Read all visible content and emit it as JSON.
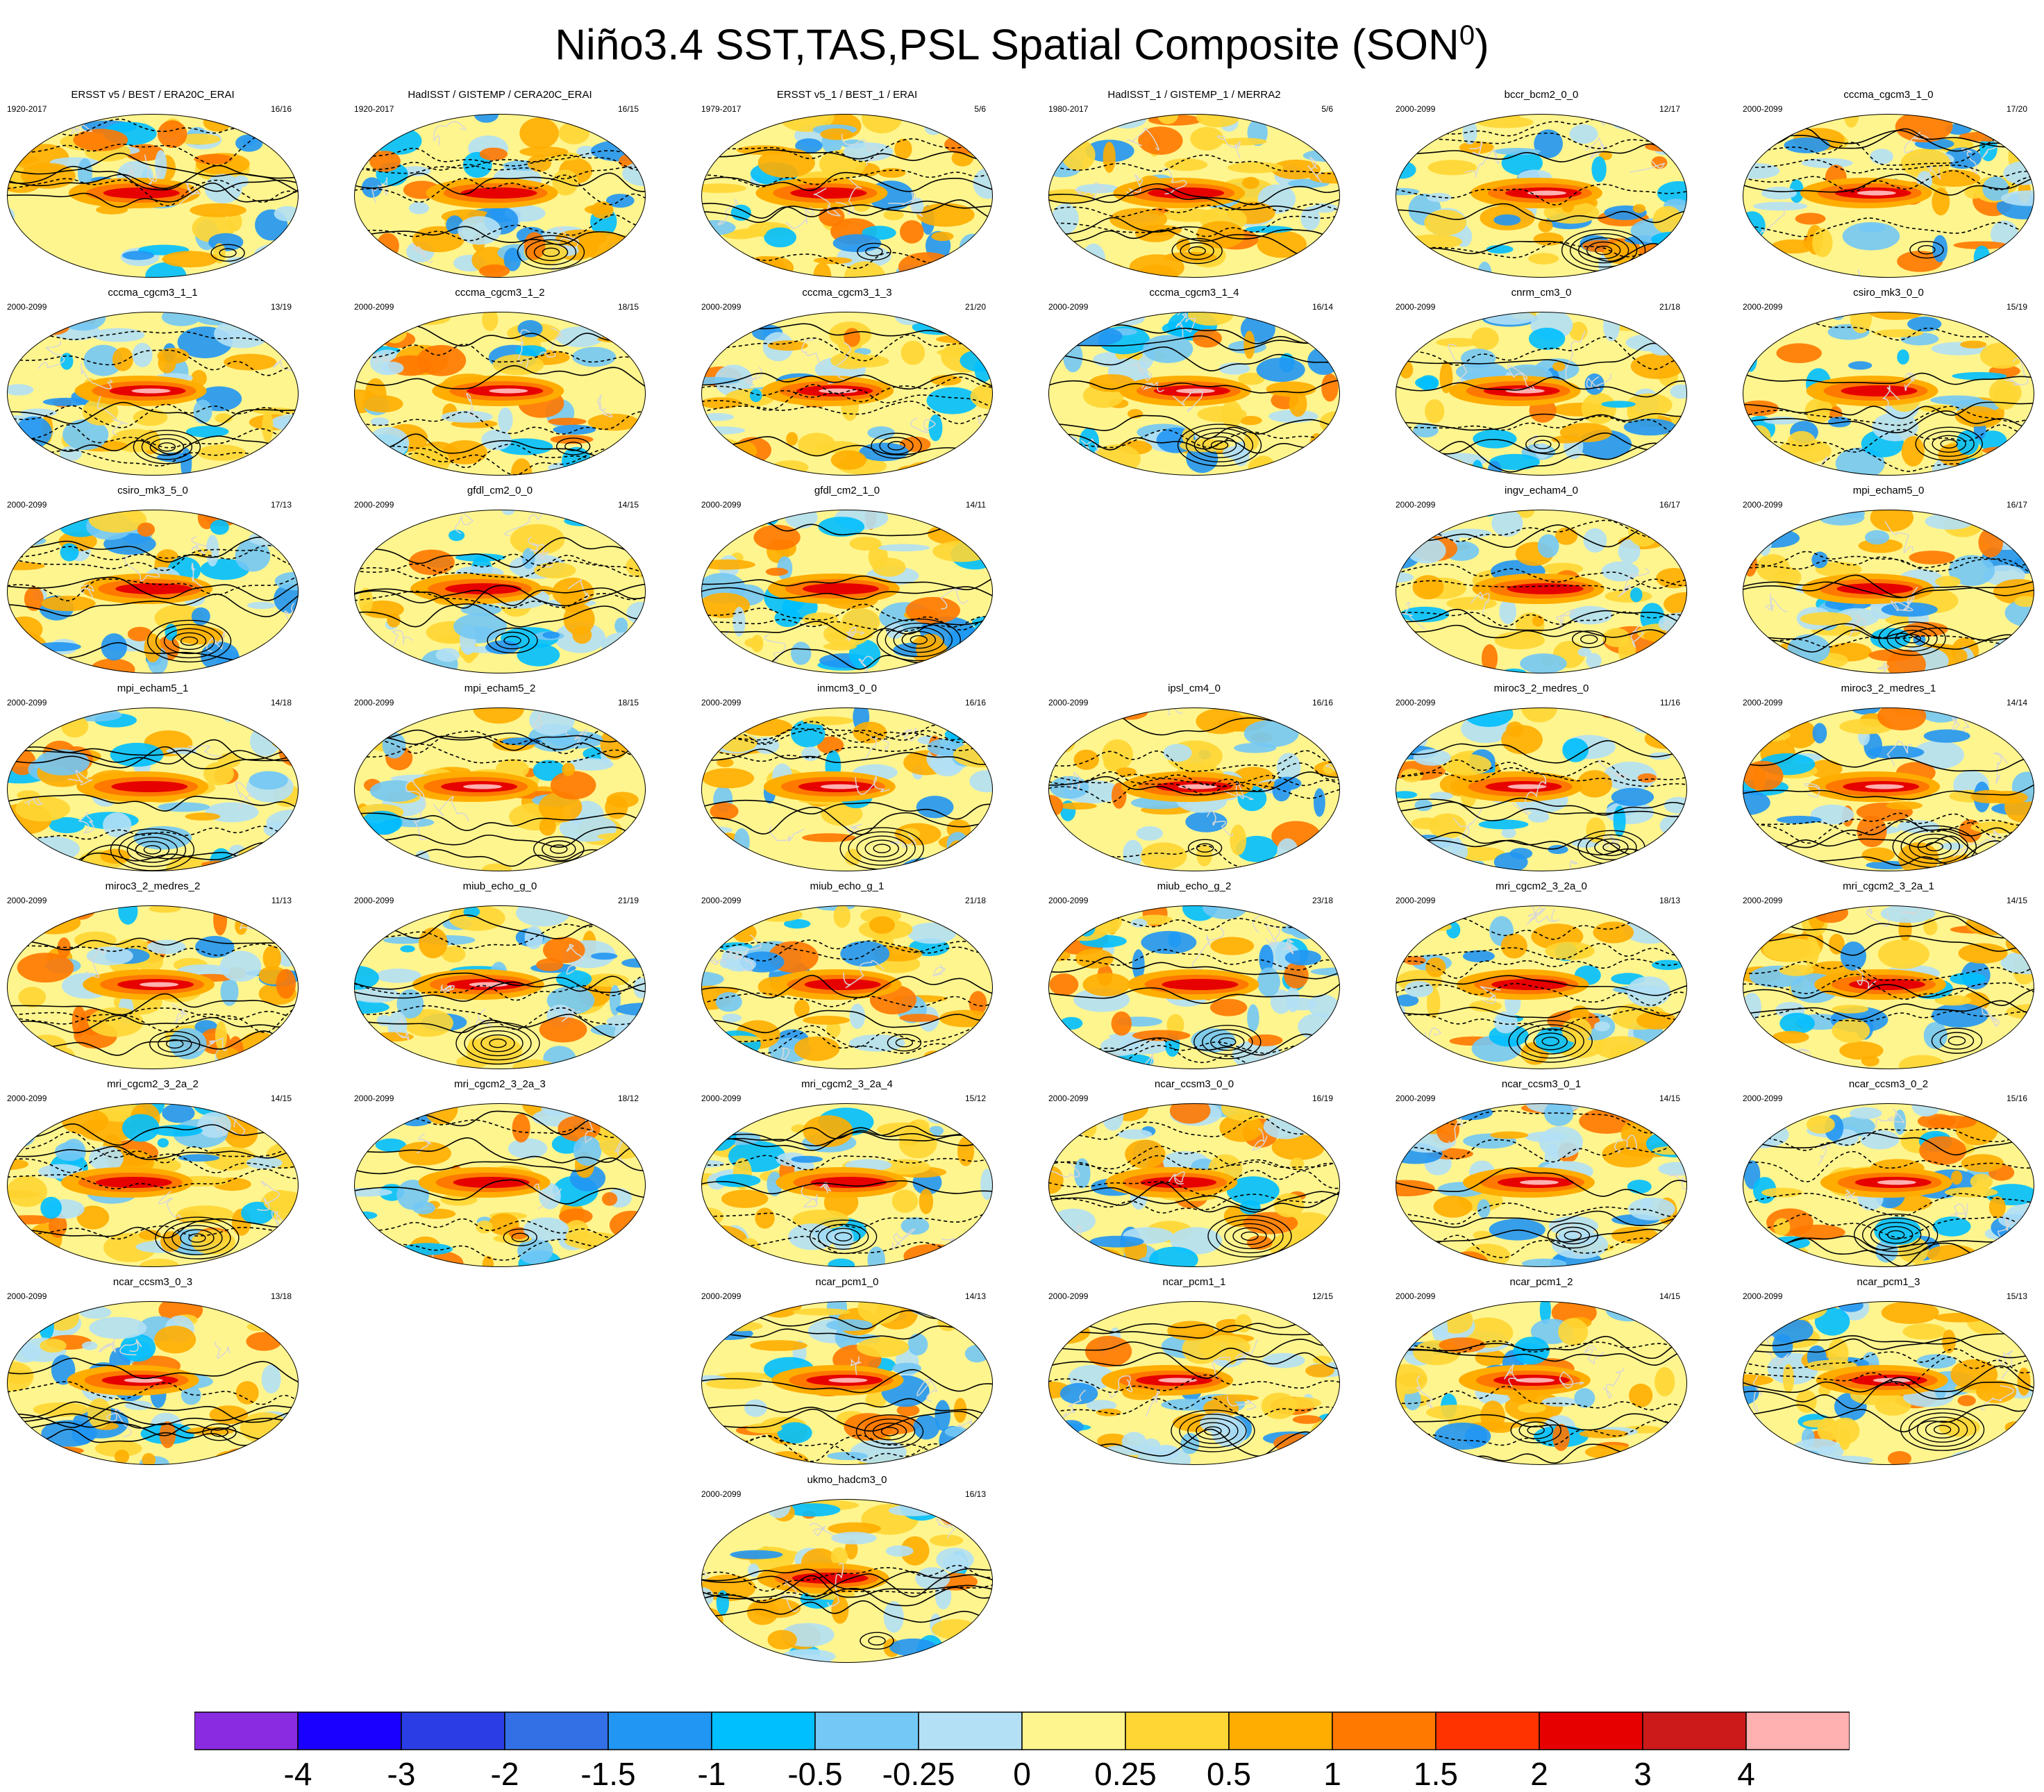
{
  "title": {
    "main": "Niño3.4 SST,TAS,PSL Spatial Composite (SON",
    "sup": "0",
    "close": ")"
  },
  "colors": {
    "levels": [
      "#8a2be2",
      "#1a00ff",
      "#2b3ee6",
      "#3370e6",
      "#2196f3",
      "#00bfff",
      "#73c8f5",
      "#b3e0f5",
      "#fff58f",
      "#ffd633",
      "#ffad00",
      "#ff7800",
      "#ff3300",
      "#e60000",
      "#cc1a1a",
      "#ffb0b0"
    ],
    "coast": "#d8d8d8",
    "contour": "#000000"
  },
  "colorbar": {
    "labels": [
      "-4",
      "-3",
      "-2",
      "-1.5",
      "-1",
      "-0.5",
      "-0.25",
      "0",
      "0.25",
      "0.5",
      "1",
      "1.5",
      "2",
      "3",
      "4"
    ]
  },
  "chart_data": {
    "type": "heatmap",
    "description_of_panels": "composite maps per model",
    "panels": [
      {
        "row": 0,
        "col": 0,
        "name": "ERSST v5 / BEST / ERA20C_ERAI",
        "years": "1920-2017",
        "count": "16/16"
      },
      {
        "row": 0,
        "col": 1,
        "name": "HadISST / GISTEMP / CERA20C_ERAI",
        "years": "1920-2017",
        "count": "16/15"
      },
      {
        "row": 0,
        "col": 2,
        "name": "ERSST v5_1 / BEST_1 / ERAI",
        "years": "1979-2017",
        "count": "5/6"
      },
      {
        "row": 0,
        "col": 3,
        "name": "HadISST_1 / GISTEMP_1 / MERRA2",
        "years": "1980-2017",
        "count": "5/6"
      },
      {
        "row": 0,
        "col": 4,
        "name": "bccr_bcm2_0_0",
        "years": "2000-2099",
        "count": "12/17"
      },
      {
        "row": 0,
        "col": 5,
        "name": "cccma_cgcm3_1_0",
        "years": "2000-2099",
        "count": "17/20"
      },
      {
        "row": 1,
        "col": 0,
        "name": "cccma_cgcm3_1_1",
        "years": "2000-2099",
        "count": "13/19"
      },
      {
        "row": 1,
        "col": 1,
        "name": "cccma_cgcm3_1_2",
        "years": "2000-2099",
        "count": "18/15"
      },
      {
        "row": 1,
        "col": 2,
        "name": "cccma_cgcm3_1_3",
        "years": "2000-2099",
        "count": "21/20"
      },
      {
        "row": 1,
        "col": 3,
        "name": "cccma_cgcm3_1_4",
        "years": "2000-2099",
        "count": "16/14"
      },
      {
        "row": 1,
        "col": 4,
        "name": "cnrm_cm3_0",
        "years": "2000-2099",
        "count": "21/18"
      },
      {
        "row": 1,
        "col": 5,
        "name": "csiro_mk3_0_0",
        "years": "2000-2099",
        "count": "15/19"
      },
      {
        "row": 2,
        "col": 0,
        "name": "csiro_mk3_5_0",
        "years": "2000-2099",
        "count": "17/13"
      },
      {
        "row": 2,
        "col": 1,
        "name": "gfdl_cm2_0_0",
        "years": "2000-2099",
        "count": "14/15"
      },
      {
        "row": 2,
        "col": 2,
        "name": "gfdl_cm2_1_0",
        "years": "2000-2099",
        "count": "14/11"
      },
      {
        "row": 2,
        "col": 4,
        "name": "ingv_echam4_0",
        "years": "2000-2099",
        "count": "16/17"
      },
      {
        "row": 2,
        "col": 5,
        "name": "mpi_echam5_0",
        "years": "2000-2099",
        "count": "16/17"
      },
      {
        "row": 3,
        "col": 0,
        "name": "mpi_echam5_1",
        "years": "2000-2099",
        "count": "14/18"
      },
      {
        "row": 3,
        "col": 1,
        "name": "mpi_echam5_2",
        "years": "2000-2099",
        "count": "18/15"
      },
      {
        "row": 3,
        "col": 2,
        "name": "inmcm3_0_0",
        "years": "2000-2099",
        "count": "16/16"
      },
      {
        "row": 3,
        "col": 3,
        "name": "ipsl_cm4_0",
        "years": "2000-2099",
        "count": "16/16"
      },
      {
        "row": 3,
        "col": 4,
        "name": "miroc3_2_medres_0",
        "years": "2000-2099",
        "count": "11/16"
      },
      {
        "row": 3,
        "col": 5,
        "name": "miroc3_2_medres_1",
        "years": "2000-2099",
        "count": "14/14"
      },
      {
        "row": 4,
        "col": 0,
        "name": "miroc3_2_medres_2",
        "years": "2000-2099",
        "count": "11/13"
      },
      {
        "row": 4,
        "col": 1,
        "name": "miub_echo_g_0",
        "years": "2000-2099",
        "count": "21/19"
      },
      {
        "row": 4,
        "col": 2,
        "name": "miub_echo_g_1",
        "years": "2000-2099",
        "count": "21/18"
      },
      {
        "row": 4,
        "col": 3,
        "name": "miub_echo_g_2",
        "years": "2000-2099",
        "count": "23/18"
      },
      {
        "row": 4,
        "col": 4,
        "name": "mri_cgcm2_3_2a_0",
        "years": "2000-2099",
        "count": "18/13"
      },
      {
        "row": 4,
        "col": 5,
        "name": "mri_cgcm2_3_2a_1",
        "years": "2000-2099",
        "count": "14/15"
      },
      {
        "row": 5,
        "col": 0,
        "name": "mri_cgcm2_3_2a_2",
        "years": "2000-2099",
        "count": "14/15"
      },
      {
        "row": 5,
        "col": 1,
        "name": "mri_cgcm2_3_2a_3",
        "years": "2000-2099",
        "count": "18/12"
      },
      {
        "row": 5,
        "col": 2,
        "name": "mri_cgcm2_3_2a_4",
        "years": "2000-2099",
        "count": "15/12"
      },
      {
        "row": 5,
        "col": 3,
        "name": "ncar_ccsm3_0_0",
        "years": "2000-2099",
        "count": "16/19"
      },
      {
        "row": 5,
        "col": 4,
        "name": "ncar_ccsm3_0_1",
        "years": "2000-2099",
        "count": "14/15"
      },
      {
        "row": 5,
        "col": 5,
        "name": "ncar_ccsm3_0_2",
        "years": "2000-2099",
        "count": "15/16"
      },
      {
        "row": 6,
        "col": 0,
        "name": "ncar_ccsm3_0_3",
        "years": "2000-2099",
        "count": "13/18"
      },
      {
        "row": 6,
        "col": 2,
        "name": "ncar_pcm1_0",
        "years": "2000-2099",
        "count": "14/13"
      },
      {
        "row": 6,
        "col": 3,
        "name": "ncar_pcm1_1",
        "years": "2000-2099",
        "count": "12/15"
      },
      {
        "row": 6,
        "col": 4,
        "name": "ncar_pcm1_2",
        "years": "2000-2099",
        "count": "14/15"
      },
      {
        "row": 6,
        "col": 5,
        "name": "ncar_pcm1_3",
        "years": "2000-2099",
        "count": "15/13"
      },
      {
        "row": 7,
        "col": 2,
        "name": "ukmo_hadcm3_0",
        "years": "2000-2099",
        "count": "16/13"
      }
    ]
  }
}
